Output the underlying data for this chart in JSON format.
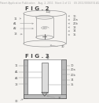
{
  "bg_color": "#f5f3f0",
  "header_color": "#aaaaaa",
  "line_color": "#999999",
  "dark_color": "#444444",
  "text_color": "#555555",
  "wall_color": "#bbbbbb",
  "fig2_label": "F I G . 2",
  "fig3_label": "F I G . 3",
  "header": "Patent Application Publication    Aug. 2, 2011  Sheet 2 of 11    US 2011/0004374 A1"
}
